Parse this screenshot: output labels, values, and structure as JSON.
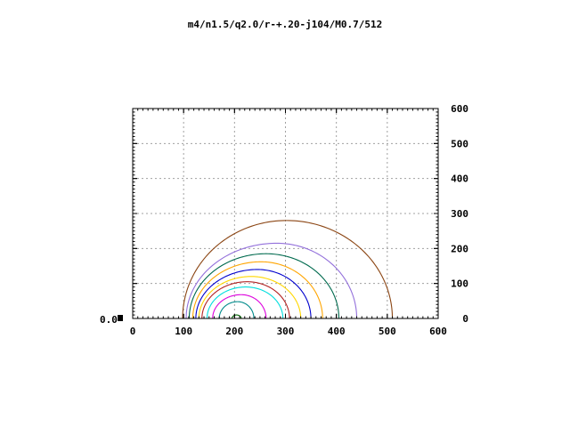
{
  "title": "m4/n1.5/q2.0/r-+.20-j104/M0.7/512",
  "chart_data": {
    "type": "line",
    "title": "m4/n1.5/q2.0/r-+.20-j104/M0.7/512",
    "xlabel": "",
    "ylabel": "",
    "xlim": [
      0,
      600
    ],
    "ylim": [
      0,
      600
    ],
    "x_ticks": [
      "0",
      "100",
      "200",
      "300",
      "400",
      "500",
      "600"
    ],
    "y_ticks_right": [
      "0",
      "100",
      "200",
      "300",
      "400",
      "500",
      "600"
    ],
    "left_axis_label": "0.0",
    "grid": true,
    "legend": "none",
    "series": [
      {
        "color": "#006400",
        "x_start": 195,
        "x_end": 213,
        "peak_x": 204,
        "peak_y": 10
      },
      {
        "color": "#008b8b",
        "x_start": 170,
        "x_end": 238,
        "peak_x": 206,
        "peak_y": 48
      },
      {
        "color": "#dd00dd",
        "x_start": 157,
        "x_end": 262,
        "peak_x": 213,
        "peak_y": 68
      },
      {
        "color": "#00dddd",
        "x_start": 146,
        "x_end": 295,
        "peak_x": 222,
        "peak_y": 90
      },
      {
        "color": "#b22222",
        "x_start": 136,
        "x_end": 308,
        "peak_x": 225,
        "peak_y": 105
      },
      {
        "color": "#ffd700",
        "x_start": 130,
        "x_end": 330,
        "peak_x": 233,
        "peak_y": 120
      },
      {
        "color": "#0000cd",
        "x_start": 124,
        "x_end": 350,
        "peak_x": 245,
        "peak_y": 140
      },
      {
        "color": "#ffa500",
        "x_start": 118,
        "x_end": 373,
        "peak_x": 252,
        "peak_y": 162
      },
      {
        "color": "#006a4e",
        "x_start": 111,
        "x_end": 405,
        "peak_x": 262,
        "peak_y": 185
      },
      {
        "color": "#9370db",
        "x_start": 105,
        "x_end": 440,
        "peak_x": 283,
        "peak_y": 215
      },
      {
        "color": "#8b4513",
        "x_start": 98,
        "x_end": 510,
        "peak_x": 302,
        "peak_y": 280
      }
    ]
  }
}
